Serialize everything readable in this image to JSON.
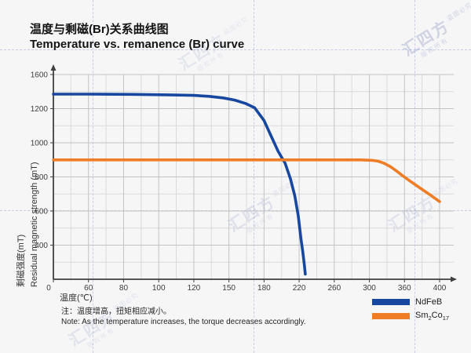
{
  "header": {
    "title_zh": "温度与剩磁(Br)关系曲线图",
    "title_en": "Temperature vs. remanence (Br) curve"
  },
  "chart_data": {
    "type": "line",
    "title": "温度与剩磁(Br)关系曲线图 / Temperature vs. remanence (Br) curve",
    "x_axis": {
      "label": "温度(℃)",
      "tick_labels": [
        0,
        60,
        80,
        100,
        120,
        150,
        180,
        220,
        260,
        300,
        360,
        400
      ]
    },
    "y_axis": {
      "label_zh": "剩磁强度(mT)",
      "label_en": "Residual magnetic strength (mT)",
      "tick_labels": [
        1600,
        1200,
        1000,
        800,
        600,
        400
      ],
      "axis_min": 0
    },
    "grid": "on",
    "legend_position": "bottom-right",
    "series": [
      {
        "name": "NdFeB",
        "color": "#17479e",
        "points": [
          [
            0,
            1370
          ],
          [
            60,
            1370
          ],
          [
            85,
            1367
          ],
          [
            105,
            1362
          ],
          [
            120,
            1355
          ],
          [
            133,
            1344
          ],
          [
            145,
            1326
          ],
          [
            155,
            1300
          ],
          [
            164,
            1262
          ],
          [
            172,
            1210
          ],
          [
            180,
            1130
          ],
          [
            188,
            1040
          ],
          [
            196,
            950
          ],
          [
            204,
            880
          ],
          [
            210,
            790
          ],
          [
            215,
            690
          ],
          [
            219,
            570
          ],
          [
            222,
            440
          ],
          [
            224,
            330
          ],
          [
            226,
            160
          ],
          [
            227,
            60
          ]
        ]
      },
      {
        "name": "Sm2Co17",
        "color": "#ee7d25",
        "points": [
          [
            0,
            900
          ],
          [
            80,
            900
          ],
          [
            160,
            900
          ],
          [
            240,
            900
          ],
          [
            290,
            900
          ],
          [
            305,
            897
          ],
          [
            315,
            892
          ],
          [
            325,
            880
          ],
          [
            335,
            862
          ],
          [
            345,
            838
          ],
          [
            355,
            812
          ],
          [
            365,
            780
          ],
          [
            378,
            734
          ],
          [
            390,
            692
          ],
          [
            400,
            655
          ]
        ]
      }
    ]
  },
  "legend": {
    "items": [
      {
        "label": "NdFeB",
        "color": "#17479e"
      },
      {
        "label_parts": [
          "Sm",
          "2",
          "Co",
          "17"
        ],
        "color": "#ee7d25"
      }
    ]
  },
  "note": {
    "line_zh": "注：温度增高，扭矩相应减小。",
    "line_en": "Note: As the temperature increases, the torque decreases accordingly."
  },
  "watermark": {
    "text_main": "汇四方",
    "text_catch": "盗图必究",
    "text_sub": "版权所有"
  },
  "colors": {
    "ndfeb_blue": "#17479e",
    "smco_orange": "#ee7d25",
    "background": "#f6f6f7",
    "grid_minor": "#dadada",
    "grid_major": "#c3c3c3",
    "axis": "#3f3f3f"
  }
}
